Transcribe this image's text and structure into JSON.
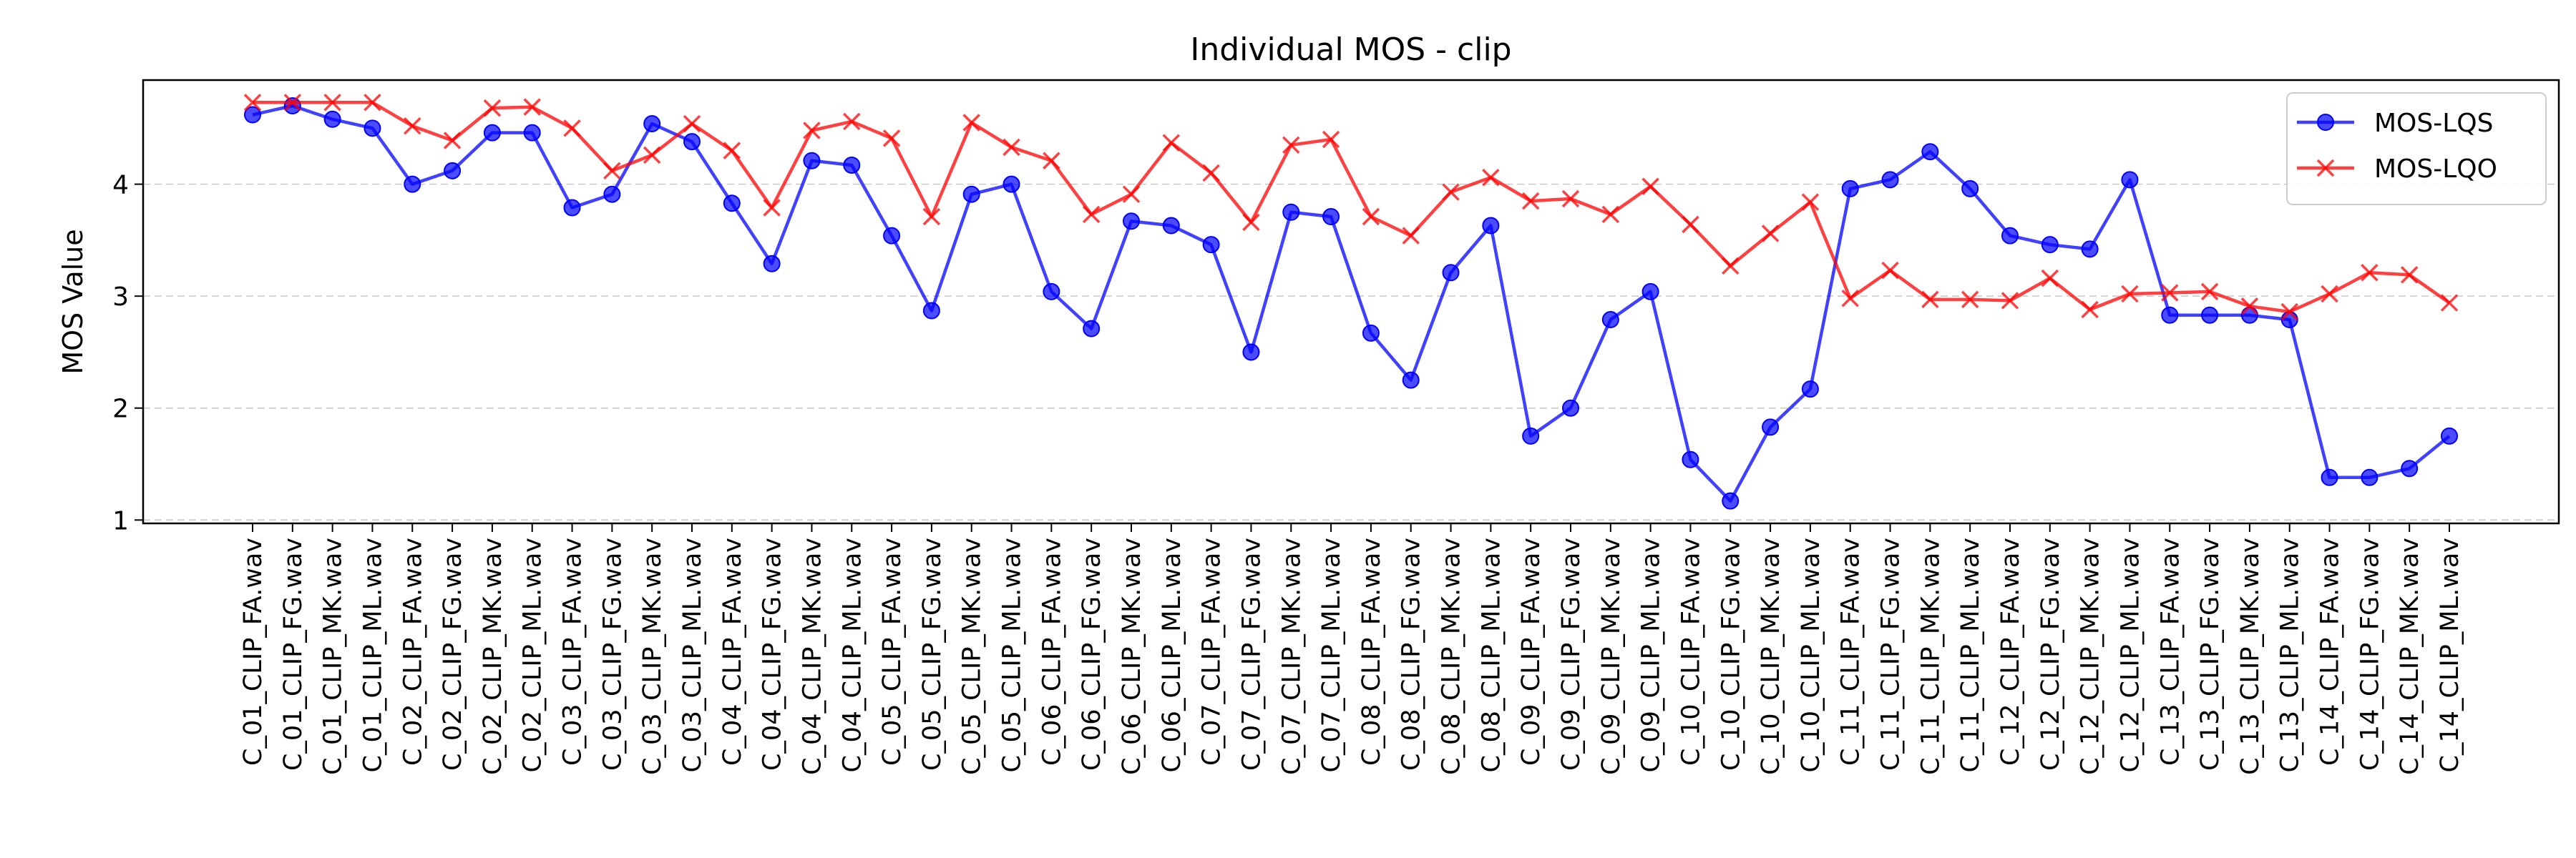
{
  "chart_data": {
    "type": "line",
    "title": "Individual MOS - clip",
    "xlabel": "",
    "ylabel": "MOS Value",
    "ylim": [
      0.97,
      4.93
    ],
    "yticks": [
      1,
      2,
      3,
      4
    ],
    "grid": "y-dashed",
    "legend_position": "top-right",
    "categories": [
      "C_01_CLIP_FA.wav",
      "C_01_CLIP_FG.wav",
      "C_01_CLIP_MK.wav",
      "C_01_CLIP_ML.wav",
      "C_02_CLIP_FA.wav",
      "C_02_CLIP_FG.wav",
      "C_02_CLIP_MK.wav",
      "C_02_CLIP_ML.wav",
      "C_03_CLIP_FA.wav",
      "C_03_CLIP_FG.wav",
      "C_03_CLIP_MK.wav",
      "C_03_CLIP_ML.wav",
      "C_04_CLIP_FA.wav",
      "C_04_CLIP_FG.wav",
      "C_04_CLIP_MK.wav",
      "C_04_CLIP_ML.wav",
      "C_05_CLIP_FA.wav",
      "C_05_CLIP_FG.wav",
      "C_05_CLIP_MK.wav",
      "C_05_CLIP_ML.wav",
      "C_06_CLIP_FA.wav",
      "C_06_CLIP_FG.wav",
      "C_06_CLIP_MK.wav",
      "C_06_CLIP_ML.wav",
      "C_07_CLIP_FA.wav",
      "C_07_CLIP_FG.wav",
      "C_07_CLIP_MK.wav",
      "C_07_CLIP_ML.wav",
      "C_08_CLIP_FA.wav",
      "C_08_CLIP_FG.wav",
      "C_08_CLIP_MK.wav",
      "C_08_CLIP_ML.wav",
      "C_09_CLIP_FA.wav",
      "C_09_CLIP_FG.wav",
      "C_09_CLIP_MK.wav",
      "C_09_CLIP_ML.wav",
      "C_10_CLIP_FA.wav",
      "C_10_CLIP_FG.wav",
      "C_10_CLIP_MK.wav",
      "C_10_CLIP_ML.wav",
      "C_11_CLIP_FA.wav",
      "C_11_CLIP_FG.wav",
      "C_11_CLIP_MK.wav",
      "C_11_CLIP_ML.wav",
      "C_12_CLIP_FA.wav",
      "C_12_CLIP_FG.wav",
      "C_12_CLIP_MK.wav",
      "C_12_CLIP_ML.wav",
      "C_13_CLIP_FA.wav",
      "C_13_CLIP_FG.wav",
      "C_13_CLIP_MK.wav",
      "C_13_CLIP_ML.wav",
      "C_14_CLIP_FA.wav",
      "C_14_CLIP_FG.wav",
      "C_14_CLIP_MK.wav",
      "C_14_CLIP_ML.wav"
    ],
    "series": [
      {
        "name": "MOS-LQS",
        "color": "#0000ff",
        "marker": "circle",
        "values": [
          4.62,
          4.7,
          4.58,
          4.5,
          4.0,
          4.12,
          4.46,
          4.46,
          3.79,
          3.91,
          4.54,
          4.38,
          3.83,
          3.29,
          4.21,
          4.17,
          3.54,
          2.87,
          3.91,
          4.0,
          3.04,
          2.71,
          3.67,
          3.63,
          3.46,
          2.5,
          3.75,
          3.71,
          2.67,
          2.25,
          3.21,
          3.63,
          1.75,
          2.0,
          2.79,
          3.04,
          1.54,
          1.17,
          1.83,
          2.17,
          3.96,
          4.04,
          4.29,
          3.96,
          3.54,
          3.46,
          3.42,
          4.04,
          2.83,
          2.83,
          2.83,
          2.79,
          1.38,
          1.38,
          1.46,
          1.75
        ]
      },
      {
        "name": "MOS-LQO",
        "color": "#ff0000",
        "marker": "x",
        "values": [
          4.73,
          4.73,
          4.73,
          4.73,
          4.52,
          4.39,
          4.68,
          4.69,
          4.5,
          4.12,
          4.26,
          4.54,
          4.3,
          3.79,
          4.48,
          4.56,
          4.41,
          3.71,
          4.55,
          4.33,
          4.21,
          3.73,
          3.91,
          4.37,
          4.1,
          3.66,
          4.35,
          4.4,
          3.71,
          3.54,
          3.93,
          4.06,
          3.85,
          3.87,
          3.73,
          3.98,
          3.64,
          3.27,
          3.56,
          3.84,
          2.98,
          3.23,
          2.97,
          2.97,
          2.96,
          3.16,
          2.88,
          3.02,
          3.03,
          3.04,
          2.91,
          2.86,
          3.02,
          3.21,
          3.19,
          2.94
        ]
      }
    ]
  }
}
